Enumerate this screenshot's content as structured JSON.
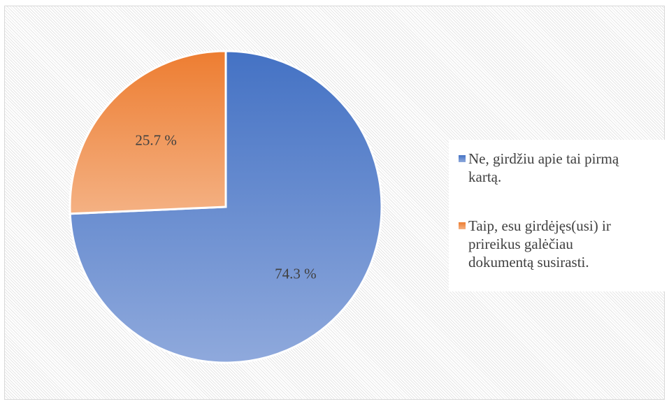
{
  "chart_data": {
    "type": "pie",
    "slices": [
      {
        "label": "Ne, girdžiu apie tai pirmą kartą.",
        "lines": [
          "Ne, girdžiu apie tai pirmą",
          "kartą."
        ],
        "value": 74.3,
        "value_label": "74.3 %",
        "color_top": "#4472c4",
        "color_bottom": "#8fa9dc"
      },
      {
        "label": "Taip, esu girdėjęs(usi) ir prireikus galėčiau dokumentą susirasti.",
        "lines": [
          "Taip, esu girdėjęs(usi) ir",
          "prireikus galėčiau",
          "dokumentą susirasti."
        ],
        "value": 25.7,
        "value_label": "25.7 %",
        "color_top": "#ed7d31",
        "color_bottom": "#f4b183"
      }
    ],
    "legend_position": "right"
  }
}
